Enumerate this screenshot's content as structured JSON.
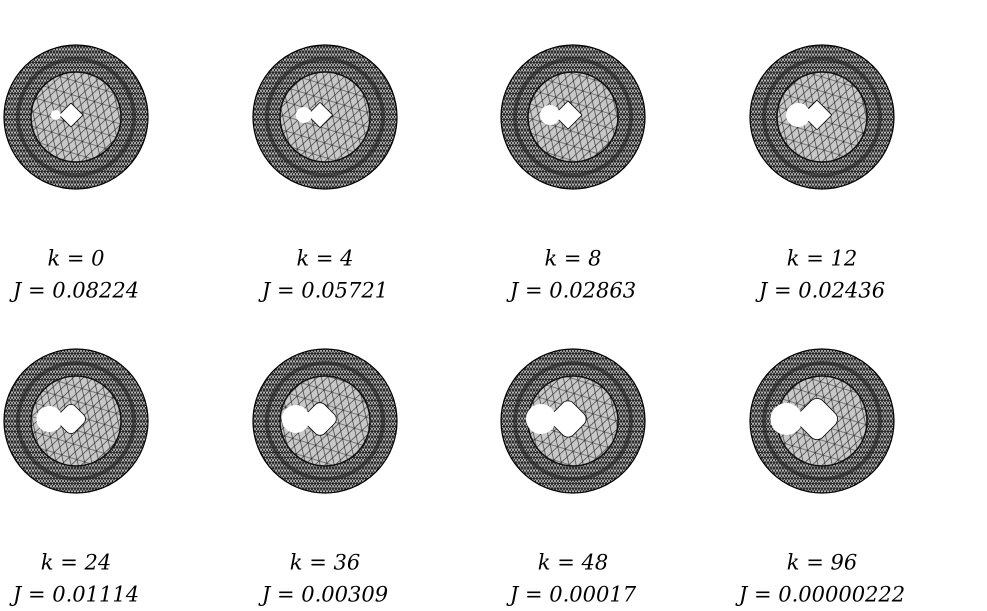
{
  "panels": [
    {
      "k": "k = 0",
      "J": "J = 0.08224"
    },
    {
      "k": "k = 4",
      "J": "J = 0.05721"
    },
    {
      "k": "k = 8",
      "J": "J = 0.02863"
    },
    {
      "k": "k = 12",
      "J": "J = 0.02436"
    },
    {
      "k": "k = 24",
      "J": "J = 0.01114"
    },
    {
      "k": "k = 36",
      "J": "J = 0.00309"
    },
    {
      "k": "k = 48",
      "J": "J = 0.00017"
    },
    {
      "k": "k = 96",
      "J": "J = 0.00000222"
    }
  ]
}
